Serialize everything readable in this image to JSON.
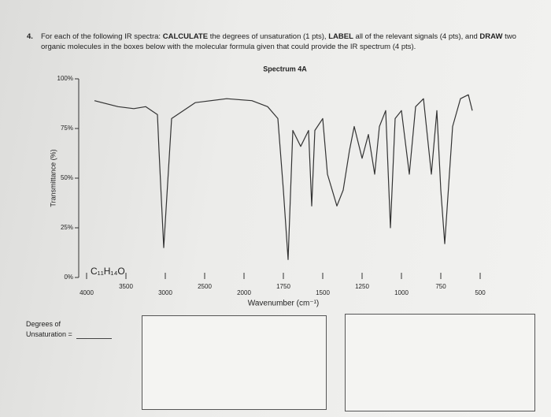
{
  "question": {
    "number": "4.",
    "parts": [
      "For each of the following IR spectra: ",
      "CALCULATE",
      " the degrees of unsaturation (1 pts), ",
      "LABEL",
      " all of the relevant signals (4 pts), and ",
      "DRAW",
      " two organic molecules in the boxes below with the molecular formula given that could provide the IR spectrum (4 pts)."
    ]
  },
  "chart_data": {
    "type": "line",
    "title": "Spectrum 4A",
    "x_label": "Wavenumber (cm⁻¹)",
    "y_label": "Transmittance (%)",
    "formula": "C₁₁H₁₄O",
    "x": [
      3900,
      3600,
      3400,
      3250,
      3100,
      3080,
      3020,
      2920,
      2620,
      2220,
      1950,
      1850,
      1785,
      1750,
      1720,
      1690,
      1640,
      1590,
      1570,
      1550,
      1500,
      1470,
      1440,
      1410,
      1370,
      1330,
      1300,
      1250,
      1210,
      1170,
      1140,
      1100,
      1070,
      1040,
      1000,
      950,
      910,
      860,
      810,
      775,
      750,
      725,
      675,
      625,
      575,
      550
    ],
    "values": [
      89,
      86,
      85,
      86,
      82,
      64,
      15,
      80,
      88,
      90,
      89,
      86,
      80,
      44,
      9,
      74,
      66,
      74,
      36,
      74,
      80,
      52,
      44,
      36,
      44,
      64,
      76,
      60,
      72,
      52,
      76,
      84,
      25,
      80,
      84,
      52,
      86,
      90,
      52,
      84,
      44,
      17,
      76,
      90,
      92,
      84
    ],
    "color": "#333333",
    "xlim": [
      4000,
      500
    ],
    "xticks": [
      4000,
      3500,
      3000,
      2500,
      2000,
      1750,
      1500,
      1250,
      1000,
      750,
      500
    ],
    "ylim": [
      0,
      100
    ],
    "yticks": [
      {
        "value": 0,
        "label": "0%"
      },
      {
        "value": 25,
        "label": "25%"
      },
      {
        "value": 50,
        "label": "50%"
      },
      {
        "value": 75,
        "label": "75%"
      },
      {
        "value": 100,
        "label": "100%"
      }
    ]
  },
  "degrees_label": "Degrees of Unsaturation ="
}
